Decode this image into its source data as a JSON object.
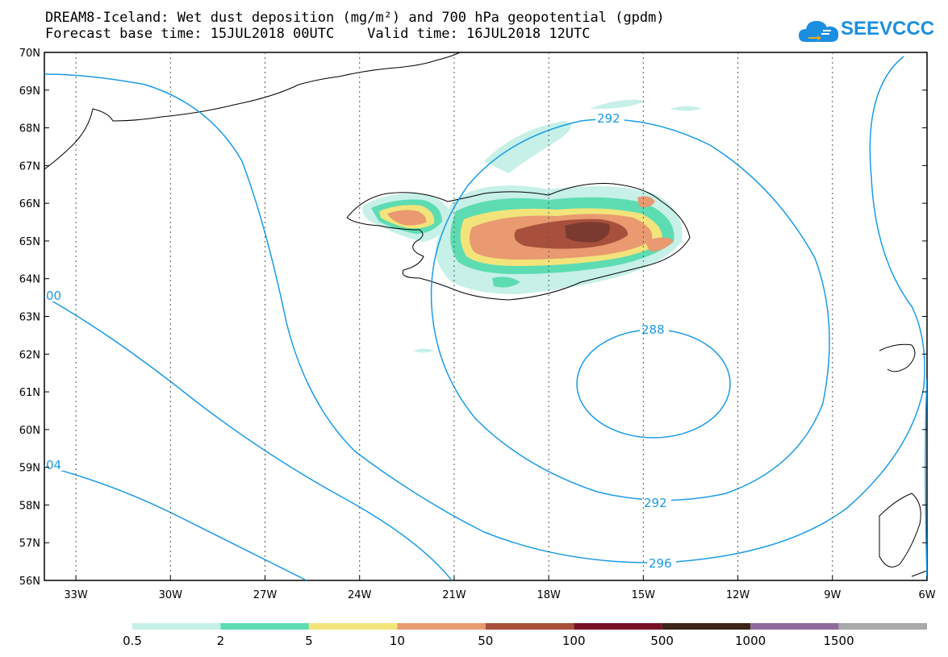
{
  "title": {
    "line1": "DREAM8-Iceland: Wet dust deposition (mg/m²) and 700 hPa geopotential (gpdm)",
    "line2": "Forecast base time: 15JUL2018 00UTC    Valid time: 16JUL2018 12UTC"
  },
  "logo": {
    "text": "SEEVCCC",
    "icon": "cloud-icon",
    "color": "#1a8fe0"
  },
  "map": {
    "lon_range": [
      -34,
      -6
    ],
    "lat_range": [
      56,
      70
    ],
    "lat_ticks": [
      "70N",
      "69N",
      "68N",
      "67N",
      "66N",
      "65N",
      "64N",
      "63N",
      "62N",
      "61N",
      "60N",
      "59N",
      "58N",
      "57N",
      "56N"
    ],
    "lon_ticks": [
      "33W",
      "30W",
      "27W",
      "24W",
      "21W",
      "18W",
      "15W",
      "12W",
      "9W",
      "6W"
    ],
    "contours": [
      {
        "label": "292"
      },
      {
        "label": "288"
      },
      {
        "label": "292"
      },
      {
        "label": "296"
      },
      {
        "label": "00"
      },
      {
        "label": "04"
      }
    ],
    "contour_color": "#1a9be8"
  },
  "legend": {
    "colors": [
      "#c6f0e8",
      "#5ddcb2",
      "#f2e47a",
      "#e99a70",
      "#a8503c",
      "#7a1028",
      "#3a2418",
      "#8e6a9a",
      "#a8a8a8"
    ],
    "labels": [
      "0.5",
      "2",
      "5",
      "10",
      "50",
      "100",
      "500",
      "1000",
      "1500"
    ]
  }
}
